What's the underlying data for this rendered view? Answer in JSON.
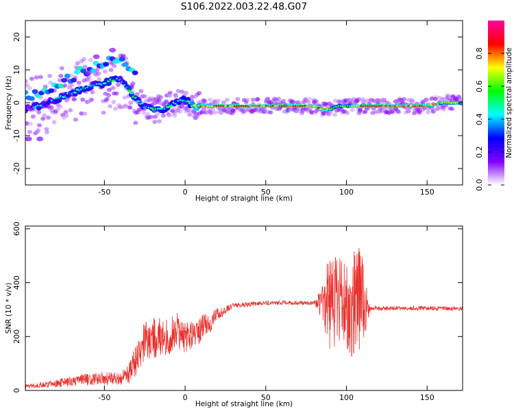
{
  "figure_title": "S106.2022.003.22.48.G07",
  "chart_data": [
    {
      "type": "heatmap",
      "title": "",
      "xlabel": "Height of straight line (km)",
      "ylabel": "Frequency (Hz)",
      "xlim": [
        -99,
        172
      ],
      "ylim": [
        -25,
        25
      ],
      "xticks": [
        -50,
        0,
        50,
        100,
        150
      ],
      "yticks": [
        -20,
        -10,
        0,
        10,
        20
      ],
      "colorbar": {
        "label": "Normalized spectral amplitude",
        "range": [
          0,
          1
        ],
        "ticks": [
          0.0,
          0.2,
          0.4,
          0.6,
          0.8
        ],
        "colors": [
          "#ffffff",
          "#8000ff",
          "#0000ff",
          "#00ffff",
          "#00ff00",
          "#ffff00",
          "#ff0000",
          "#ff00a0"
        ]
      },
      "ridge_frequency": {
        "x": [
          -99,
          -90,
          -80,
          -70,
          -60,
          -50,
          -45,
          -40,
          -35,
          -30,
          -25,
          -20,
          -15,
          -10,
          -5,
          0,
          5,
          10,
          20,
          30,
          40,
          50,
          60,
          70,
          80,
          85,
          90,
          95,
          100,
          105,
          110,
          120,
          130,
          140,
          150,
          160,
          170
        ],
        "y": [
          -2,
          -1,
          1,
          3,
          5,
          6,
          7,
          7,
          4,
          1,
          -1,
          -2,
          -2,
          -1,
          0,
          1,
          -1,
          -1,
          -1,
          -1,
          -1,
          -1,
          -1,
          -1,
          -1,
          -2,
          -2,
          -1,
          -1,
          -1,
          -1,
          -1,
          -1,
          -1,
          -1,
          0,
          0
        ]
      },
      "ridge_amplitude": {
        "x": [
          -99,
          -70,
          -50,
          -30,
          -10,
          0,
          10,
          30,
          50,
          70,
          90,
          100,
          110,
          130,
          150,
          160,
          170
        ],
        "y": [
          0.3,
          0.4,
          0.5,
          0.45,
          0.55,
          0.45,
          0.75,
          0.85,
          0.85,
          0.85,
          0.7,
          0.5,
          0.85,
          0.85,
          0.8,
          0.65,
          0.6
        ]
      },
      "scattered_features": [
        {
          "x": -60,
          "y": 9
        },
        {
          "x": -55,
          "y": 14
        },
        {
          "x": -45,
          "y": 16
        },
        {
          "x": -97,
          "y": -11
        },
        {
          "x": -90,
          "y": -11
        }
      ]
    },
    {
      "type": "line",
      "title": "",
      "xlabel": "Height of straight line (km)",
      "ylabel": "SNR (10 * v/v)",
      "xlim": [
        -99,
        172
      ],
      "ylim": [
        0,
        610
      ],
      "xticks": [
        -50,
        0,
        50,
        100,
        150
      ],
      "yticks": [
        0,
        200,
        400,
        600
      ],
      "color": "#e8302c",
      "series": [
        {
          "name": "",
          "x": [
            -99,
            -90,
            -80,
            -70,
            -60,
            -50,
            -40,
            -35,
            -30,
            -25,
            -20,
            -15,
            -10,
            -5,
            0,
            5,
            10,
            15,
            20,
            25,
            30,
            40,
            50,
            60,
            70,
            80,
            85,
            88,
            90,
            92,
            95,
            98,
            100,
            103,
            105,
            107,
            110,
            112,
            115,
            130,
            150,
            172
          ],
          "y": [
            15,
            20,
            25,
            35,
            40,
            45,
            45,
            60,
            120,
            190,
            190,
            200,
            200,
            220,
            200,
            210,
            230,
            250,
            280,
            300,
            315,
            320,
            325,
            325,
            325,
            325,
            325,
            330,
            320,
            320,
            320,
            320,
            320,
            320,
            320,
            320,
            320,
            310,
            305,
            305,
            305,
            305
          ],
          "noise": [
            8,
            10,
            15,
            20,
            22,
            25,
            25,
            40,
            60,
            80,
            80,
            75,
            70,
            70,
            60,
            55,
            50,
            40,
            25,
            15,
            10,
            8,
            8,
            8,
            8,
            8,
            60,
            150,
            200,
            180,
            170,
            180,
            160,
            200,
            220,
            230,
            180,
            100,
            8,
            8,
            8,
            8
          ]
        }
      ]
    }
  ]
}
